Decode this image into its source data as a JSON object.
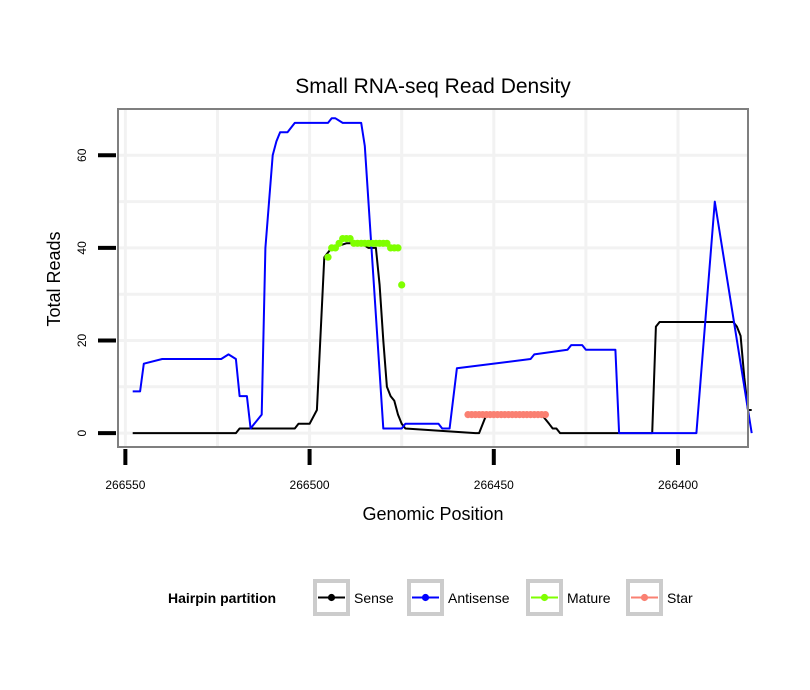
{
  "chart_data": {
    "type": "line",
    "title": "Small RNA-seq Read Density",
    "xlabel": "Genomic Position",
    "ylabel": "Total Reads",
    "x_reversed": true,
    "xlim": [
      266552,
      266381
    ],
    "ylim": [
      -3,
      70
    ],
    "x_ticks": [
      266550,
      266500,
      266450,
      266400
    ],
    "x_tick_labels": [
      "266550",
      "266500",
      "266450",
      "266400"
    ],
    "y_ticks": [
      0,
      20,
      40,
      60
    ],
    "y_tick_labels": [
      "0",
      "20",
      "40",
      "60"
    ],
    "grid": true,
    "legend": {
      "title": "Hairpin partition",
      "position": "bottom",
      "entries": [
        {
          "label": "Sense",
          "color": "#000000"
        },
        {
          "label": "Antisense",
          "color": "#0000ff"
        },
        {
          "label": "Mature",
          "color": "#7fff00"
        },
        {
          "label": "Star",
          "color": "#fa8072"
        }
      ]
    },
    "series": [
      {
        "name": "Sense",
        "color": "#000000",
        "style": "line",
        "x": [
          266548,
          266520,
          266519,
          266510,
          266509,
          266504,
          266503,
          266502,
          266501,
          266500,
          266498,
          266496,
          266494,
          266490,
          266486,
          266484,
          266483,
          266482,
          266481,
          266480,
          266479,
          266478,
          266477,
          266476,
          266475,
          266474,
          266455,
          266454,
          266452,
          266444,
          266437,
          266435,
          266434,
          266433,
          266432,
          266430,
          266427,
          266407,
          266406,
          266405,
          266385,
          266384,
          266383,
          266382,
          266381,
          266380
        ],
        "y": [
          0,
          0,
          1,
          1,
          1,
          1,
          2,
          2,
          2,
          2,
          5,
          38,
          40,
          41,
          41,
          40,
          40,
          40,
          32,
          20,
          10,
          8,
          7,
          4,
          2,
          1,
          0,
          0,
          4,
          4,
          4,
          2,
          1,
          1,
          0,
          0,
          0,
          0,
          23,
          24,
          24,
          23,
          21,
          12,
          5,
          5
        ]
      },
      {
        "name": "Antisense",
        "color": "#0000ff",
        "style": "line",
        "x": [
          266548,
          266546,
          266545,
          266540,
          266530,
          266524,
          266522,
          266520,
          266519,
          266517,
          266516,
          266515,
          266513,
          266512,
          266510,
          266509,
          266508,
          266506,
          266505,
          266504,
          266500,
          266496,
          266495,
          266494,
          266493,
          266491,
          266490,
          266486,
          266485,
          266480,
          266475,
          266474,
          266473,
          266472,
          266471,
          266470,
          266468,
          266465,
          266464,
          266463,
          266462,
          266460,
          266440,
          266439,
          266430,
          266429,
          266426,
          266425,
          266424,
          266422,
          266421,
          266420,
          266417,
          266416,
          266405,
          266396,
          266395,
          266390,
          266380
        ],
        "y": [
          9,
          9,
          15,
          16,
          16,
          16,
          17,
          16,
          8,
          8,
          1,
          2,
          4,
          40,
          60,
          63,
          65,
          65,
          66,
          67,
          67,
          67,
          67,
          68,
          68,
          67,
          67,
          67,
          62,
          1,
          1,
          2,
          2,
          2,
          2,
          2,
          2,
          2,
          1,
          1,
          1,
          14,
          16,
          17,
          18,
          19,
          19,
          18,
          18,
          18,
          18,
          18,
          18,
          0,
          0,
          0,
          0,
          50,
          0
        ]
      },
      {
        "name": "Mature",
        "color": "#7fff00",
        "style": "points",
        "x": [
          266495,
          266494,
          266493,
          266492,
          266491,
          266490,
          266489,
          266488,
          266487,
          266486,
          266485,
          266484,
          266483,
          266482,
          266481,
          266480,
          266479,
          266478,
          266477,
          266476,
          266475
        ],
        "y": [
          38,
          40,
          40,
          41,
          42,
          42,
          42,
          41,
          41,
          41,
          41,
          41,
          41,
          41,
          41,
          41,
          41,
          40,
          40,
          40,
          32
        ]
      },
      {
        "name": "Star",
        "color": "#fa8072",
        "style": "points",
        "x": [
          266457,
          266456,
          266455,
          266454,
          266453,
          266452,
          266451,
          266450,
          266449,
          266448,
          266447,
          266446,
          266445,
          266444,
          266443,
          266442,
          266441,
          266440,
          266439,
          266438,
          266437,
          266436
        ],
        "y": [
          4,
          4,
          4,
          4,
          4,
          4,
          4,
          4,
          4,
          4,
          4,
          4,
          4,
          4,
          4,
          4,
          4,
          4,
          4,
          4,
          4,
          4
        ]
      }
    ]
  }
}
